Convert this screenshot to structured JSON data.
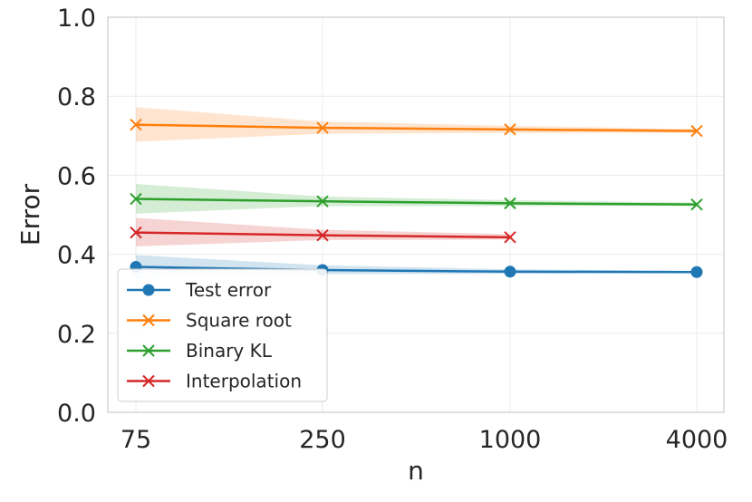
{
  "chart_data": {
    "type": "line",
    "xlabel": "n",
    "ylabel": "Error",
    "x": [
      "75",
      "250",
      "1000",
      "4000"
    ],
    "ylim": [
      0.0,
      1.0
    ],
    "yticks": [
      "0.0",
      "0.2",
      "0.4",
      "0.6",
      "0.8",
      "1.0"
    ],
    "grid": true,
    "legend_position": "lower-left",
    "series": [
      {
        "name": "Test error",
        "color": "#1f77b4",
        "marker": "circle",
        "values": [
          0.368,
          0.36,
          0.356,
          0.355
        ],
        "band": [
          [
            0.338,
            0.398
          ],
          [
            0.35,
            0.372
          ],
          [
            0.35,
            0.362
          ],
          [
            0.352,
            0.358
          ]
        ]
      },
      {
        "name": "Square root",
        "color": "#ff7f0e",
        "marker": "x",
        "values": [
          0.728,
          0.72,
          0.716,
          0.712
        ],
        "band": [
          [
            0.685,
            0.772
          ],
          [
            0.705,
            0.736
          ],
          [
            0.707,
            0.725
          ],
          [
            0.707,
            0.717
          ]
        ]
      },
      {
        "name": "Binary KL",
        "color": "#2ca02c",
        "marker": "x",
        "values": [
          0.54,
          0.534,
          0.529,
          0.526
        ],
        "band": [
          [
            0.503,
            0.578
          ],
          [
            0.522,
            0.546
          ],
          [
            0.522,
            0.537
          ],
          [
            0.522,
            0.531
          ]
        ]
      },
      {
        "name": "Interpolation",
        "color": "#d62728",
        "marker": "x",
        "values": [
          0.455,
          0.448,
          0.443,
          null
        ],
        "band": [
          [
            0.42,
            0.492
          ],
          [
            0.436,
            0.462
          ],
          [
            0.437,
            0.451
          ],
          null
        ]
      }
    ]
  }
}
